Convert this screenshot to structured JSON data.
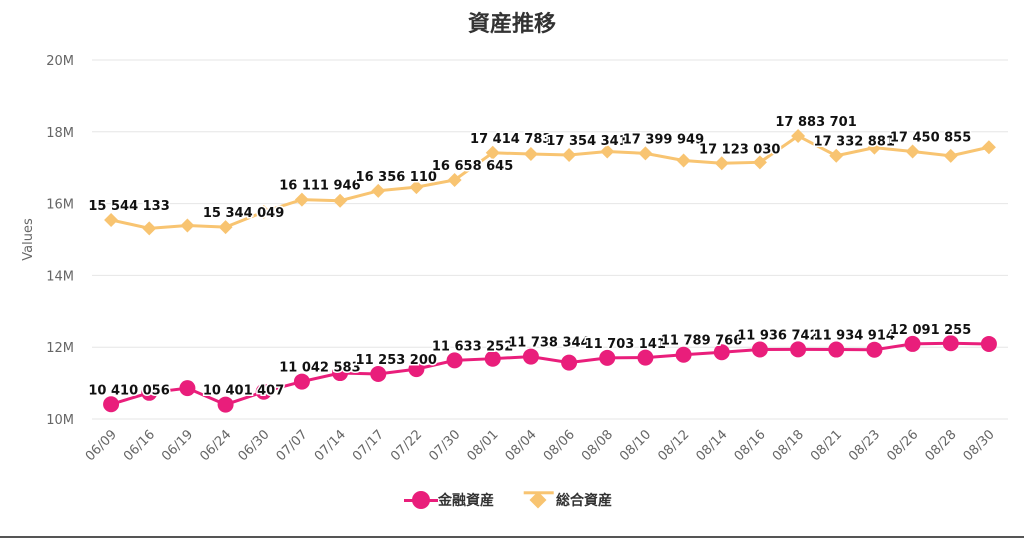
{
  "chart_data": {
    "type": "line",
    "title": "資産推移",
    "ylabel": "Values",
    "ylim": [
      10000000,
      20000000
    ],
    "yticks": [
      "10M",
      "12M",
      "14M",
      "16M",
      "18M",
      "20M"
    ],
    "ytick_values": [
      10000000,
      12000000,
      14000000,
      16000000,
      18000000,
      20000000
    ],
    "grid": true,
    "legend_position": "bottom-center",
    "categories": [
      "06/09",
      "06/16",
      "06/19",
      "06/24",
      "06/30",
      "07/07",
      "07/14",
      "07/17",
      "07/22",
      "07/30",
      "08/01",
      "08/04",
      "08/06",
      "08/08",
      "08/10",
      "08/12",
      "08/14",
      "08/16",
      "08/18",
      "08/21",
      "08/23",
      "08/26",
      "08/28",
      "08/30"
    ],
    "series": [
      {
        "name": "金融資産",
        "color": "#e91e7b",
        "marker": "circle",
        "values": [
          10410056,
          10730000,
          10860000,
          10401407,
          10760000,
          11042583,
          11280000,
          11253200,
          11390000,
          11633252,
          11680000,
          11738344,
          11570000,
          11703141,
          11710000,
          11789766,
          11860000,
          11936742,
          11940000,
          11934914,
          11930000,
          12091255,
          12110000,
          12090000
        ],
        "labels": [
          {
            "index": 0,
            "text": "10 410 056"
          },
          {
            "index": 3,
            "text": "10 401 407"
          },
          {
            "index": 5,
            "text": "11 042 583"
          },
          {
            "index": 7,
            "text": "11 253 200"
          },
          {
            "index": 9,
            "text": "11 633 252"
          },
          {
            "index": 11,
            "text": "11 738 344"
          },
          {
            "index": 13,
            "text": "11 703 141"
          },
          {
            "index": 15,
            "text": "11 789 766"
          },
          {
            "index": 17,
            "text": "11 936 742"
          },
          {
            "index": 19,
            "text": "11 934 914"
          },
          {
            "index": 21,
            "text": "12 091 255"
          }
        ]
      },
      {
        "name": "総合資産",
        "color": "#f8c471",
        "marker": "diamond",
        "values": [
          15544133,
          15310000,
          15390000,
          15344049,
          15770000,
          16111946,
          16080000,
          16356110,
          16460000,
          16658645,
          17414783,
          17380000,
          17354341,
          17450000,
          17399949,
          17200000,
          17123030,
          17150000,
          17883701,
          17332881,
          17560000,
          17450855,
          17330000,
          17570000
        ],
        "labels": [
          {
            "index": 0,
            "text": "15 544 133"
          },
          {
            "index": 3,
            "text": "15 344 049"
          },
          {
            "index": 5,
            "text": "16 111 946"
          },
          {
            "index": 7,
            "text": "16 356 110"
          },
          {
            "index": 9,
            "text": "16 658 645"
          },
          {
            "index": 10,
            "text": "17 414 783"
          },
          {
            "index": 12,
            "text": "17 354 341"
          },
          {
            "index": 14,
            "text": "17 399 949"
          },
          {
            "index": 16,
            "text": "17 123 030"
          },
          {
            "index": 18,
            "text": "17 883 701"
          },
          {
            "index": 19,
            "text": "17 332 881"
          },
          {
            "index": 21,
            "text": "17 450 855"
          }
        ]
      }
    ]
  }
}
